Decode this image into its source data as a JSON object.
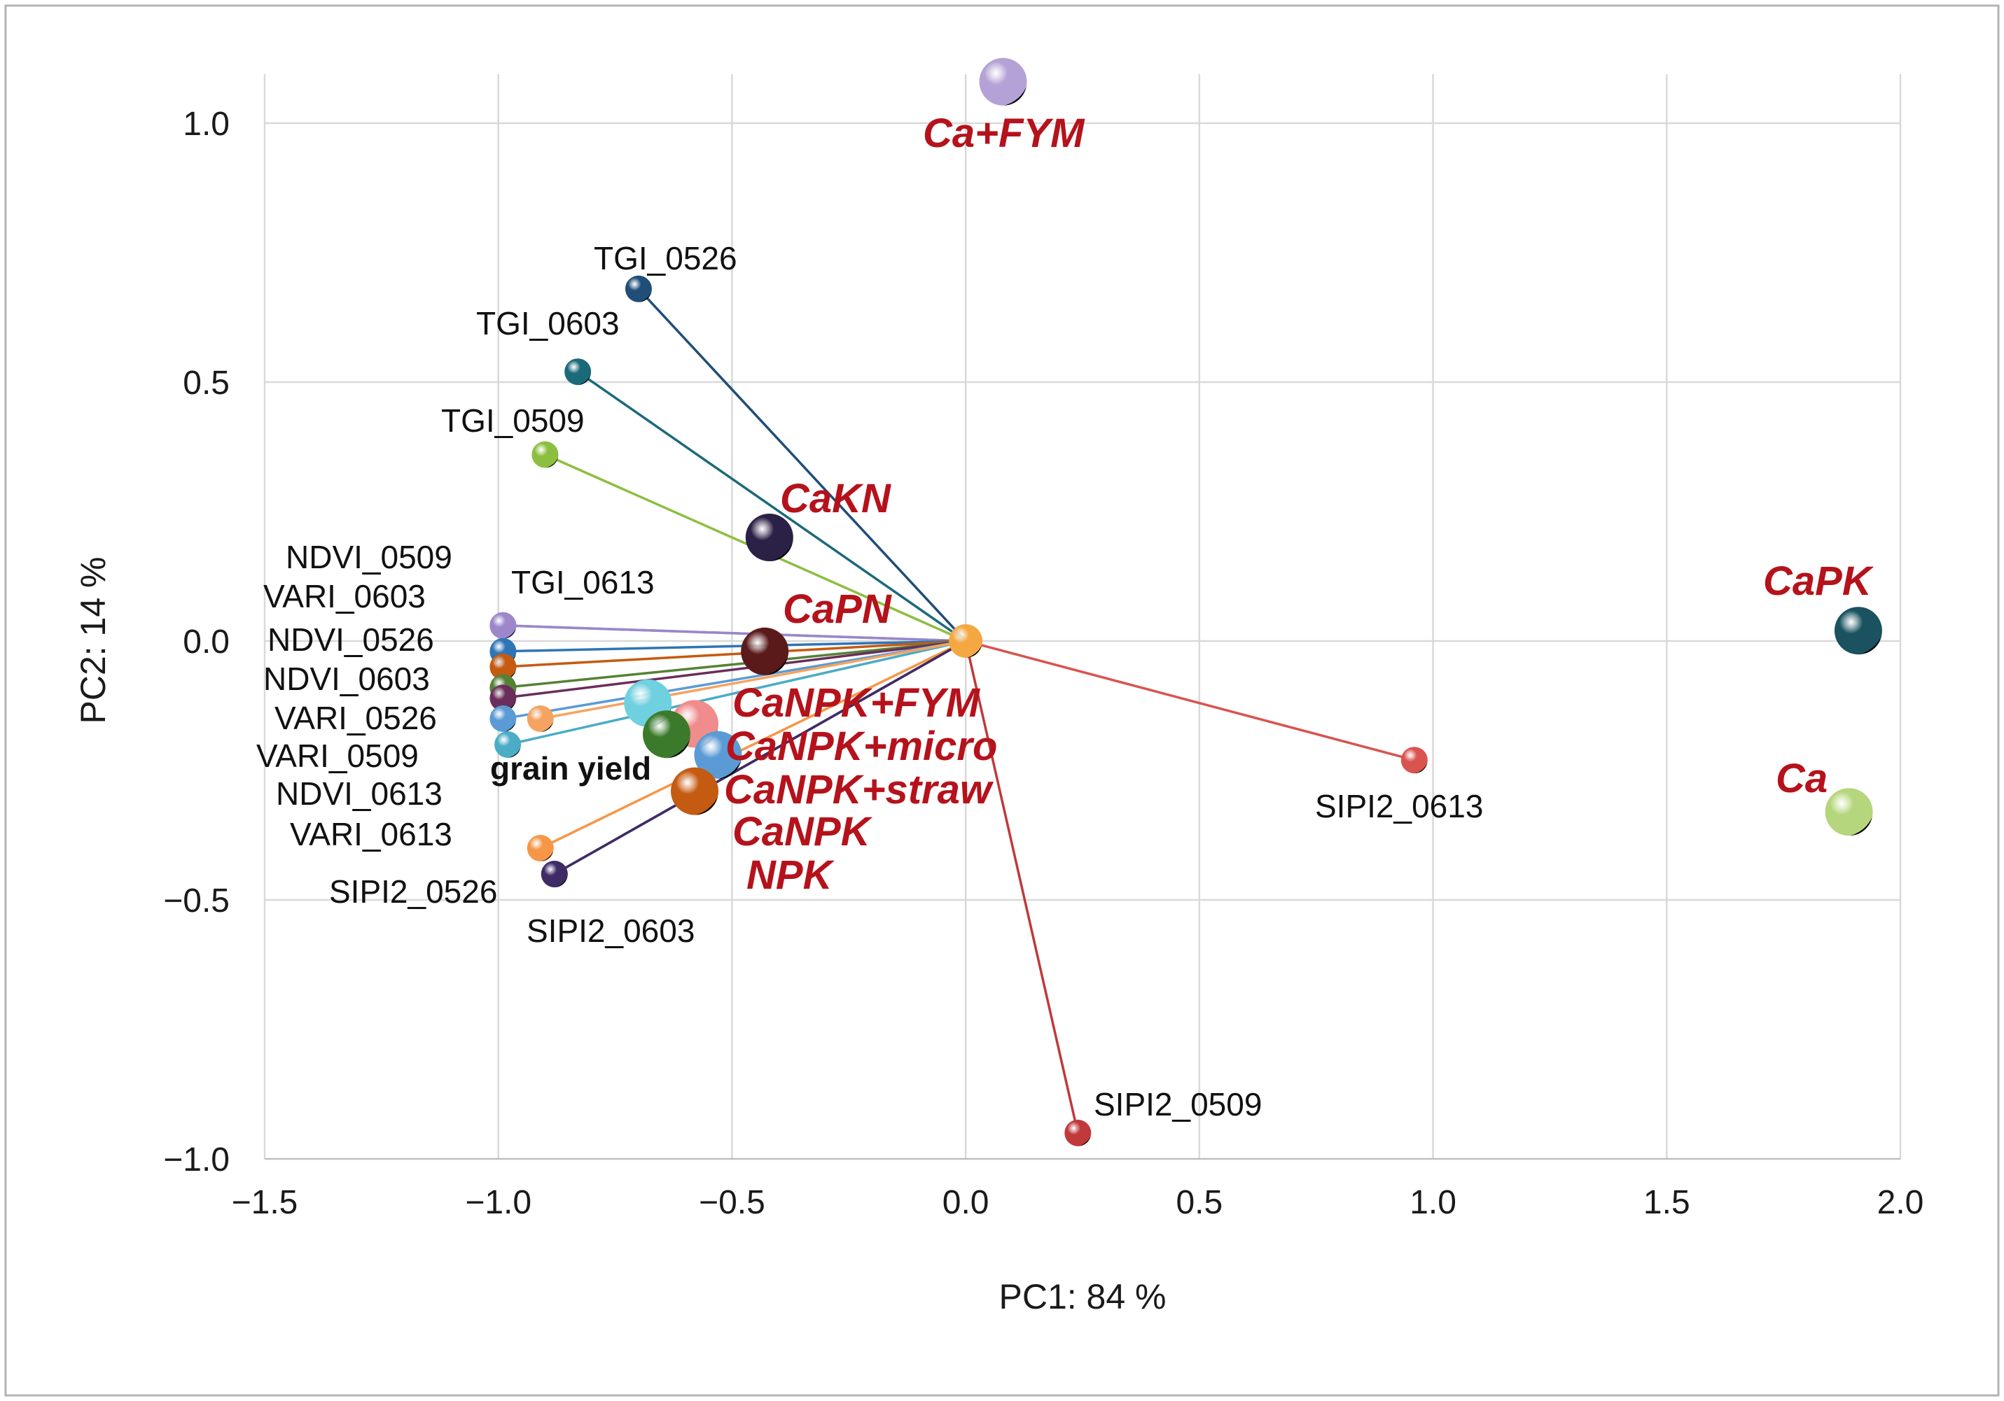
{
  "chart_data": {
    "type": "scatter",
    "subtype": "pca-biplot",
    "xlabel": "PC1: 84 %",
    "ylabel": "PC2: 14 %",
    "xlim": [
      -1.5,
      2.0
    ],
    "ylim": [
      -1.0,
      1.0
    ],
    "xticks": [
      -1.5,
      -1.0,
      -0.5,
      0.0,
      0.5,
      1.0,
      1.5,
      2.0
    ],
    "yticks": [
      -1.0,
      -0.5,
      0.0,
      0.5,
      1.0
    ],
    "xtick_labels": [
      "−1.5",
      "−1.0",
      "−0.5",
      "0.0",
      "0.5",
      "1.0",
      "1.5",
      "2.0"
    ],
    "ytick_labels": [
      "−1.0",
      "−0.5",
      "0.0",
      "0.5",
      "1.0"
    ],
    "grid": true,
    "origin_marker_color": "#f5a742",
    "variables": [
      {
        "name": "TGI_0526",
        "x": -0.7,
        "y": 0.68,
        "color": "#1f4e79"
      },
      {
        "name": "TGI_0603",
        "x": -0.83,
        "y": 0.52,
        "color": "#1b6a7a"
      },
      {
        "name": "TGI_0509",
        "x": -0.9,
        "y": 0.36,
        "color": "#8cbf3f"
      },
      {
        "name": "NDVI_0509",
        "x": -0.99,
        "y": 0.03,
        "color": "#9b87c9"
      },
      {
        "name": "TGI_0613",
        "x": -0.99,
        "y": 0.03,
        "color": "#9b87c9"
      },
      {
        "name": "VARI_0603",
        "x": -0.99,
        "y": -0.02,
        "color": "#2e75b6"
      },
      {
        "name": "NDVI_0526",
        "x": -0.99,
        "y": -0.05,
        "color": "#c55a11"
      },
      {
        "name": "NDVI_0603",
        "x": -0.99,
        "y": -0.09,
        "color": "#548235"
      },
      {
        "name": "VARI_0526",
        "x": -0.99,
        "y": -0.11,
        "color": "#6b2d5c"
      },
      {
        "name": "VARI_0509",
        "x": -0.99,
        "y": -0.15,
        "color": "#5b9bd5"
      },
      {
        "name": "NDVI_0613",
        "x": -0.98,
        "y": -0.2,
        "color": "#4bacc6"
      },
      {
        "name": "grain yield",
        "x": -0.91,
        "y": -0.15,
        "color": "#f4a460",
        "bold": true
      },
      {
        "name": "VARI_0613",
        "x": -0.91,
        "y": -0.4,
        "color": "#f79646"
      },
      {
        "name": "SIPI2_0526",
        "x": -0.88,
        "y": -0.45,
        "color": "#3f2b66"
      },
      {
        "name": "SIPI2_0603",
        "x": -0.88,
        "y": -0.45,
        "color": "#3f2b66"
      },
      {
        "name": "SIPI2_0613",
        "x": 0.96,
        "y": -0.23,
        "color": "#d9534f"
      },
      {
        "name": "SIPI2_0509",
        "x": 0.24,
        "y": -0.95,
        "color": "#c0393b"
      }
    ],
    "observations": [
      {
        "name": "Ca+FYM",
        "x": 0.08,
        "y": 1.08,
        "color": "#b4a2d6"
      },
      {
        "name": "CaKN",
        "x": -0.42,
        "y": 0.2,
        "color": "#2b2045"
      },
      {
        "name": "CaPN",
        "x": -0.43,
        "y": -0.02,
        "color": "#5a1a1a"
      },
      {
        "name": "CaNPK+FYM",
        "x": -0.68,
        "y": -0.12,
        "color": "#6fd0e0"
      },
      {
        "name": "CaNPK+micro",
        "x": -0.58,
        "y": -0.16,
        "color": "#f08c8c"
      },
      {
        "name": "CaNPK+straw",
        "x": -0.53,
        "y": -0.22,
        "color": "#5b9bd5"
      },
      {
        "name": "CaNPK",
        "x": -0.58,
        "y": -0.29,
        "color": "#c55a11"
      },
      {
        "name": "NPK",
        "x": -0.64,
        "y": -0.18,
        "color": "#3b7a2a"
      },
      {
        "name": "CaPK",
        "x": 1.91,
        "y": 0.02,
        "color": "#1a5260"
      },
      {
        "name": "Ca",
        "x": 1.89,
        "y": -0.33,
        "color": "#b5d67c"
      }
    ]
  }
}
